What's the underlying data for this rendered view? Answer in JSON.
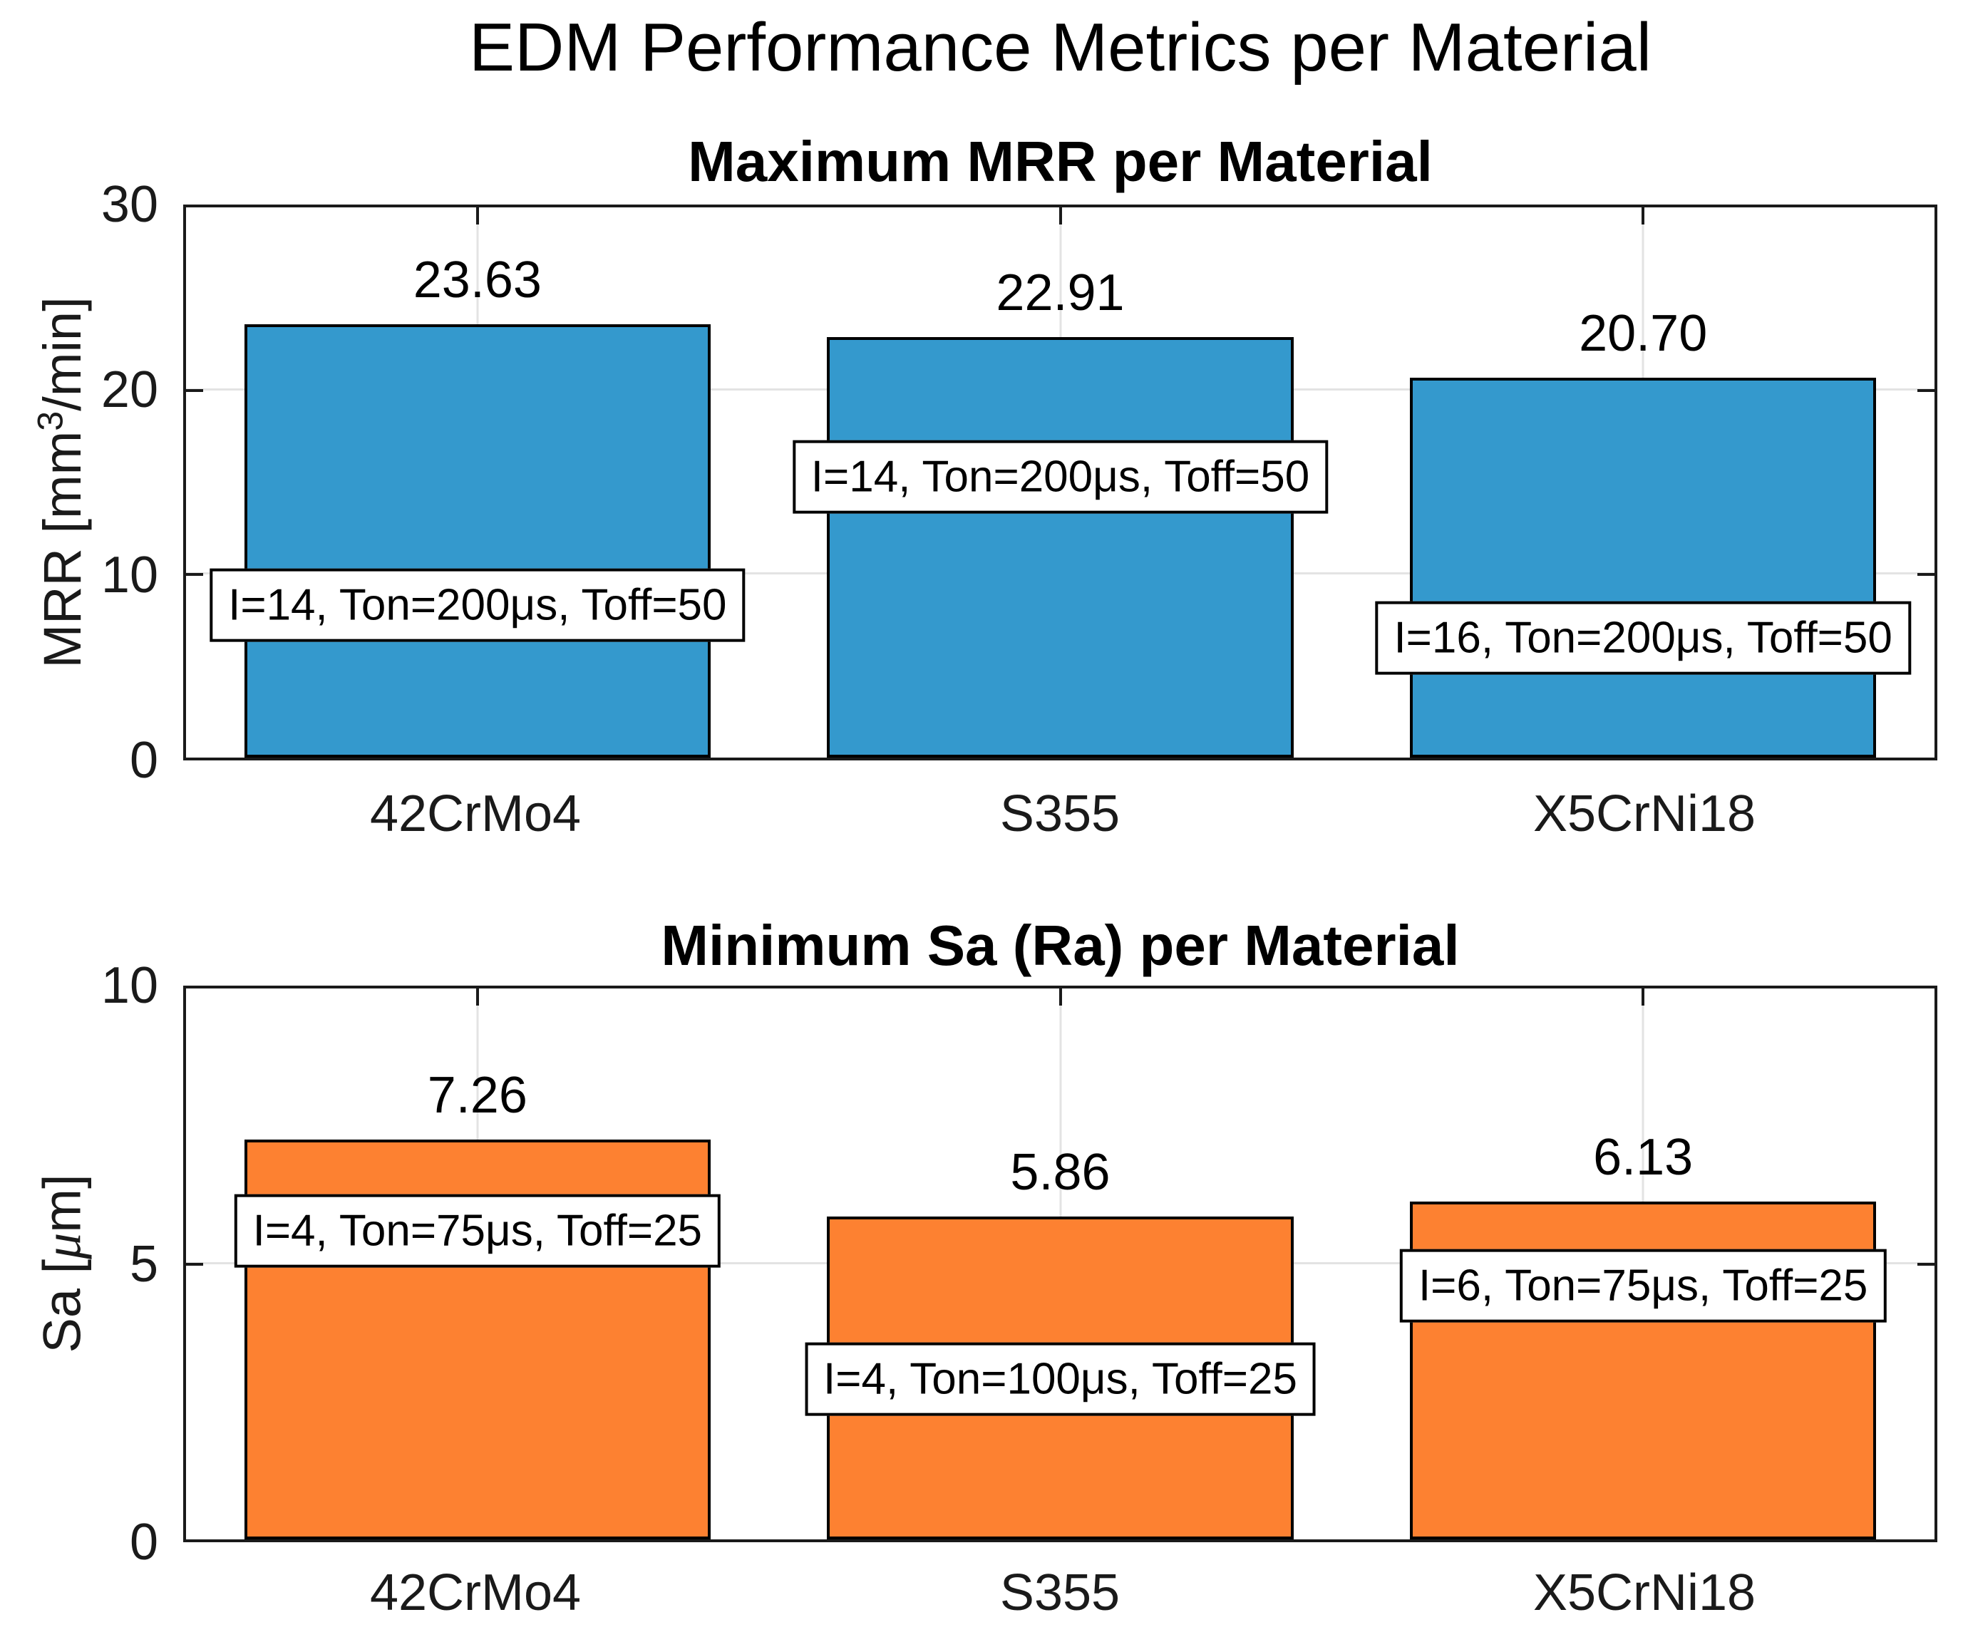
{
  "figure": {
    "title": "EDM Performance Metrics per Material",
    "background_color": "#ffffff",
    "axis_color": "#1a1a1a",
    "grid_color": "#e3e3e3"
  },
  "chart_data": [
    {
      "type": "bar",
      "title": "Maximum MRR per Material",
      "categories": [
        "42CrMo4",
        "S355",
        "X5CrNi18"
      ],
      "values": [
        23.63,
        22.91,
        20.7
      ],
      "value_labels": [
        "23.63",
        "22.91",
        "20.70"
      ],
      "annotations": [
        "I=14, Ton=200μs, Toff=50",
        "I=14, Ton=200μs, Toff=50",
        "I=16, Ton=200μs, Toff=50"
      ],
      "ylabel": {
        "p1": "MRR [mm",
        "sup": "3",
        "p2": "/min]"
      },
      "ylabel_text": "MRR [mm^3/min]",
      "ylim": [
        0,
        30
      ],
      "yticks": [
        "0",
        "10",
        "20",
        "30"
      ],
      "grid": true,
      "legend": "none",
      "bar_color": "#3499CD",
      "bar_edge_color": "#000000"
    },
    {
      "type": "bar",
      "title": "Minimum Sa (Ra) per Material",
      "categories": [
        "42CrMo4",
        "S355",
        "X5CrNi18"
      ],
      "values": [
        7.26,
        5.86,
        6.13
      ],
      "value_labels": [
        "7.26",
        "5.86",
        "6.13"
      ],
      "annotations": [
        "I=4, Ton=75μs, Toff=25",
        "I=4, Ton=100μs, Toff=25",
        "I=6, Ton=75μs, Toff=25"
      ],
      "ylabel": {
        "p1": "Sa [",
        "mu": "μ",
        "p2": "m]"
      },
      "ylabel_text": "Sa [μm]",
      "ylim": [
        0,
        10
      ],
      "yticks": [
        "0",
        "5",
        "10"
      ],
      "grid": true,
      "legend": "none",
      "bar_color": "#FD8131",
      "bar_edge_color": "#000000"
    }
  ]
}
